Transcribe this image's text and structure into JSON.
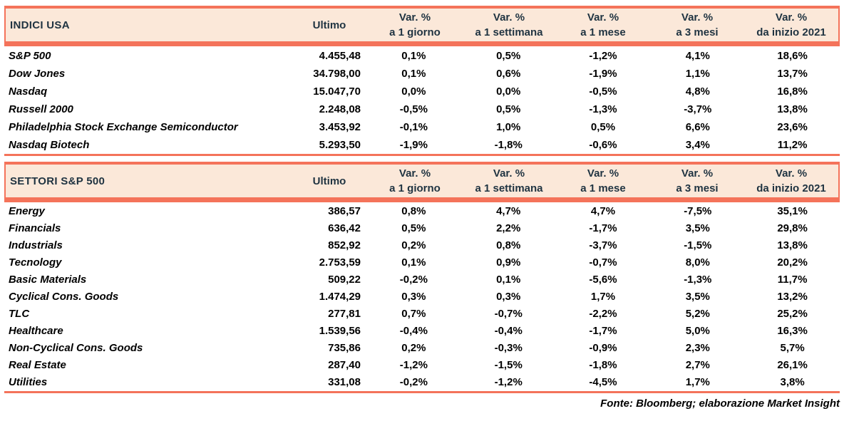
{
  "colors": {
    "border_salmon": "#F4735A",
    "header_background": "#FBE8D9",
    "header_text": "#1F3341",
    "body_text": "#000000"
  },
  "columns": {
    "ultimo": "Ultimo",
    "var_label": "Var. %",
    "periods": [
      "a 1 giorno",
      "a 1 settimana",
      "a 1 mese",
      "a 3 mesi",
      "da inizio 2021"
    ]
  },
  "sections": [
    {
      "title": "INDICI USA",
      "rows": [
        {
          "name": "S&P 500",
          "ultimo": "4.455,48",
          "vars": [
            "0,1%",
            "0,5%",
            "-1,2%",
            "4,1%",
            "18,6%"
          ]
        },
        {
          "name": "Dow Jones",
          "ultimo": "34.798,00",
          "vars": [
            "0,1%",
            "0,6%",
            "-1,9%",
            "1,1%",
            "13,7%"
          ]
        },
        {
          "name": "Nasdaq",
          "ultimo": "15.047,70",
          "vars": [
            "0,0%",
            "0,0%",
            "-0,5%",
            "4,8%",
            "16,8%"
          ]
        },
        {
          "name": "Russell 2000",
          "ultimo": "2.248,08",
          "vars": [
            "-0,5%",
            "0,5%",
            "-1,3%",
            "-3,7%",
            "13,8%"
          ]
        },
        {
          "name": "Philadelphia Stock Exchange Semiconductor",
          "ultimo": "3.453,92",
          "vars": [
            "-0,1%",
            "1,0%",
            "0,5%",
            "6,6%",
            "23,6%"
          ]
        },
        {
          "name": "Nasdaq Biotech",
          "ultimo": "5.293,50",
          "vars": [
            "-1,9%",
            "-1,8%",
            "-0,6%",
            "3,4%",
            "11,2%"
          ]
        }
      ]
    },
    {
      "title": "SETTORI S&P 500",
      "rows": [
        {
          "name": "Energy",
          "ultimo": "386,57",
          "vars": [
            "0,8%",
            "4,7%",
            "4,7%",
            "-7,5%",
            "35,1%"
          ]
        },
        {
          "name": "Financials",
          "ultimo": "636,42",
          "vars": [
            "0,5%",
            "2,2%",
            "-1,7%",
            "3,5%",
            "29,8%"
          ]
        },
        {
          "name": "Industrials",
          "ultimo": "852,92",
          "vars": [
            "0,2%",
            "0,8%",
            "-3,7%",
            "-1,5%",
            "13,8%"
          ]
        },
        {
          "name": "Tecnology",
          "ultimo": "2.753,59",
          "vars": [
            "0,1%",
            "0,9%",
            "-0,7%",
            "8,0%",
            "20,2%"
          ]
        },
        {
          "name": "Basic Materials",
          "ultimo": "509,22",
          "vars": [
            "-0,2%",
            "0,1%",
            "-5,6%",
            "-1,3%",
            "11,7%"
          ]
        },
        {
          "name": "Cyclical Cons. Goods",
          "ultimo": "1.474,29",
          "vars": [
            "0,3%",
            "0,3%",
            "1,7%",
            "3,5%",
            "13,2%"
          ]
        },
        {
          "name": "TLC",
          "ultimo": "277,81",
          "vars": [
            "0,7%",
            "-0,7%",
            "-2,2%",
            "5,2%",
            "25,2%"
          ]
        },
        {
          "name": "Healthcare",
          "ultimo": "1.539,56",
          "vars": [
            "-0,4%",
            "-0,4%",
            "-1,7%",
            "5,0%",
            "16,3%"
          ]
        },
        {
          "name": "Non-Cyclical Cons. Goods",
          "ultimo": "735,86",
          "vars": [
            "0,2%",
            "-0,3%",
            "-0,9%",
            "2,3%",
            "5,7%"
          ]
        },
        {
          "name": "Real Estate",
          "ultimo": "287,40",
          "vars": [
            "-1,2%",
            "-1,5%",
            "-1,8%",
            "2,7%",
            "26,1%"
          ]
        },
        {
          "name": "Utilities",
          "ultimo": "331,08",
          "vars": [
            "-0,2%",
            "-1,2%",
            "-4,5%",
            "1,7%",
            "3,8%"
          ]
        }
      ]
    }
  ],
  "footer": "Fonte: Bloomberg; elaborazione Market Insight"
}
